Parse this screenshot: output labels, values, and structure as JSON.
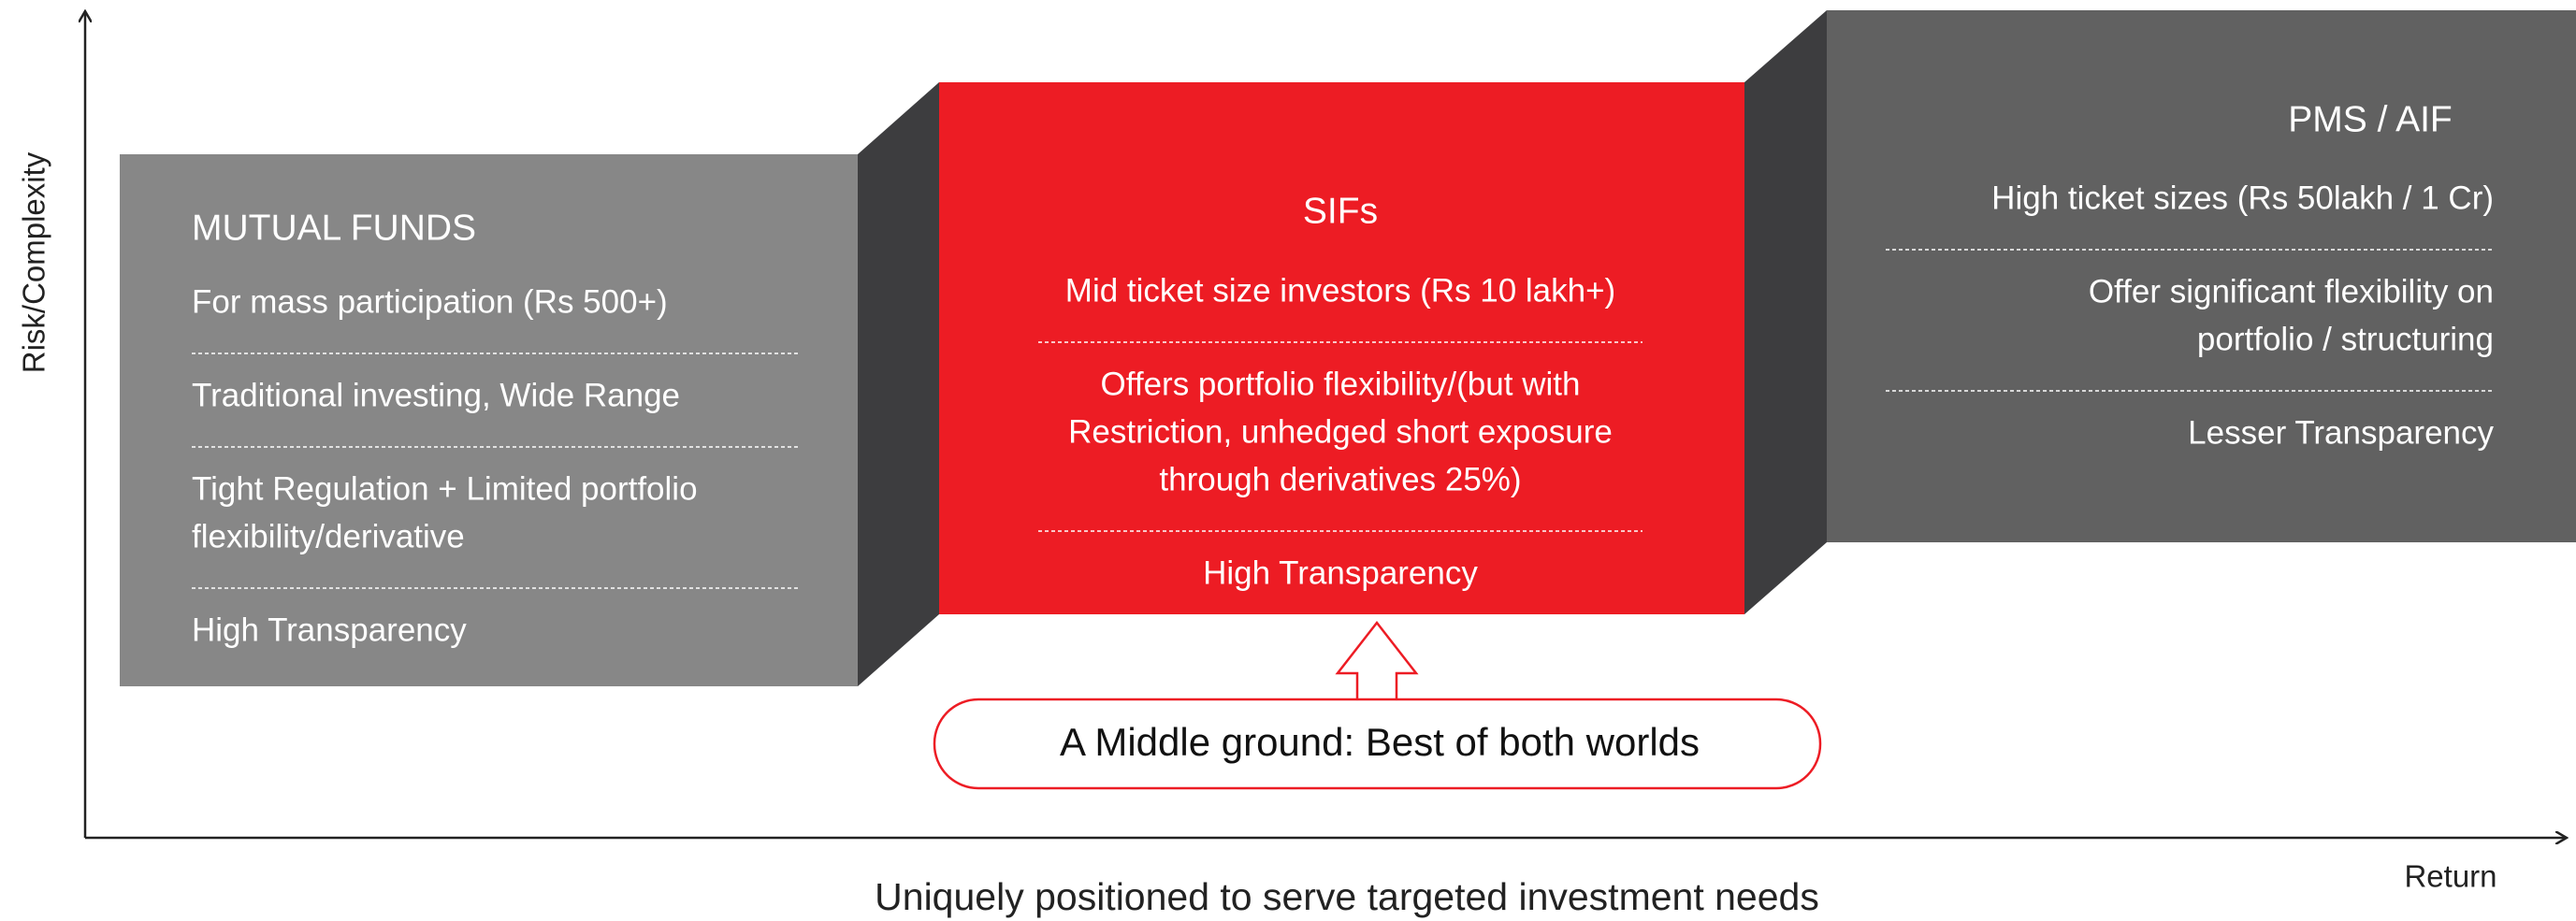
{
  "axes": {
    "y_label": "Risk/Complexity",
    "x_label": "Return"
  },
  "caption": "Uniquely positioned to serve targeted investment needs",
  "boxes": [
    {
      "title": "MUTUAL FUNDS",
      "items": [
        [
          "For mass participation (Rs 500+)"
        ],
        [
          "Traditional investing, Wide Range"
        ],
        [
          "Tight Regulation + Limited portfolio",
          "flexibility/derivative"
        ],
        [
          "High Transparency"
        ]
      ]
    },
    {
      "title": "SIFs",
      "items": [
        [
          "Mid ticket size investors (Rs 10 lakh+)"
        ],
        [
          "Offers portfolio flexibility/(but with",
          "Restriction, unhedged short exposure",
          "through derivatives 25%)"
        ],
        [
          "High Transparency"
        ]
      ]
    },
    {
      "title": "PMS / AIF",
      "items": [
        [
          "High ticket sizes (Rs 50lakh / 1 Cr)"
        ],
        [
          "Offer significant flexibility on",
          "portfolio / structuring"
        ],
        [
          "Lesser Transparency"
        ]
      ]
    }
  ],
  "callout": "A Middle ground: Best of both worlds"
}
